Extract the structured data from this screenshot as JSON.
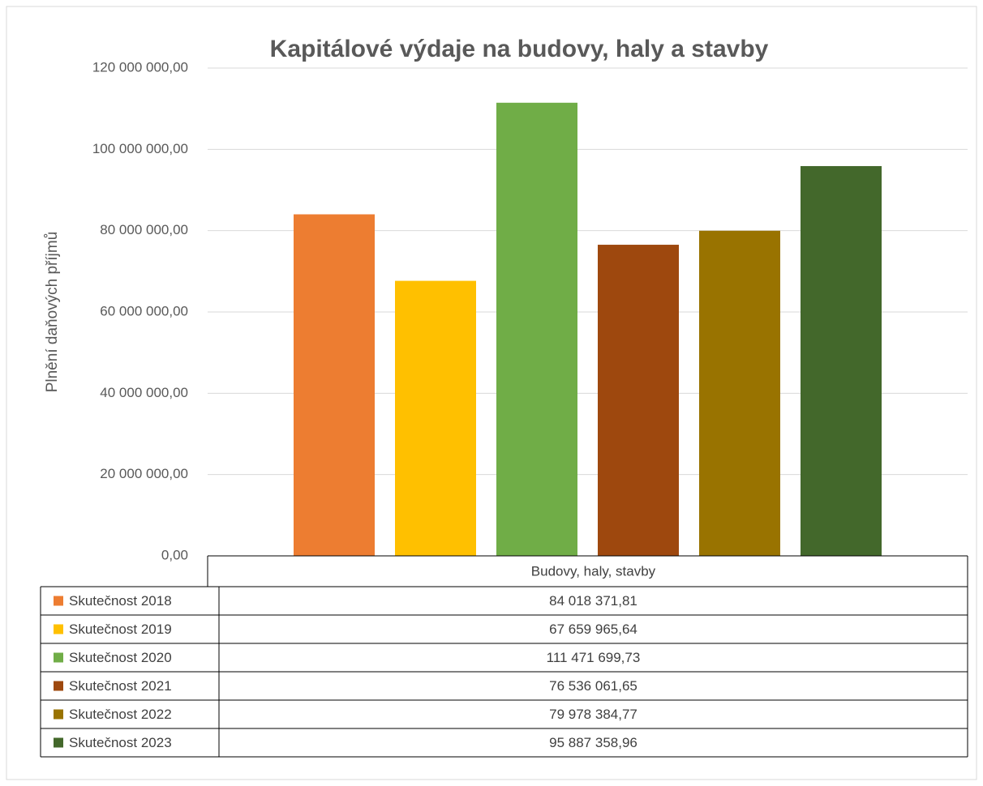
{
  "chart_data": {
    "type": "bar",
    "title": "Kapitálové výdaje  na budovy, haly a stavby",
    "y_label": "Plnění daňových příjmů",
    "categories": [
      "Budovy, haly, stavby"
    ],
    "series": [
      {
        "name": "Skutečnost 2018",
        "color": "#ED7D31",
        "values": [
          84018371.81
        ],
        "value_labels": [
          "84 018 371,81"
        ]
      },
      {
        "name": "Skutečnost 2019",
        "color": "#FFC000",
        "values": [
          67659965.64
        ],
        "value_labels": [
          "67 659 965,64"
        ]
      },
      {
        "name": "Skutečnost 2020",
        "color": "#70AD47",
        "values": [
          111471699.73
        ],
        "value_labels": [
          "111 471 699,73"
        ]
      },
      {
        "name": "Skutečnost 2021",
        "color": "#9E480E",
        "values": [
          76536061.65
        ],
        "value_labels": [
          "76 536 061,65"
        ]
      },
      {
        "name": "Skutečnost 2022",
        "color": "#997300",
        "values": [
          79978384.77
        ],
        "value_labels": [
          "79 978 384,77"
        ]
      },
      {
        "name": "Skutečnost 2023",
        "color": "#43682B",
        "values": [
          95887358.96
        ],
        "value_labels": [
          "95 887 358,96"
        ]
      }
    ],
    "ylim": [
      0,
      120000000
    ],
    "yticks": [
      {
        "value": 0,
        "label": "0,00"
      },
      {
        "value": 20000000,
        "label": "20 000 000,00"
      },
      {
        "value": 40000000,
        "label": "40 000 000,00"
      },
      {
        "value": 60000000,
        "label": "60 000 000,00"
      },
      {
        "value": 80000000,
        "label": "80 000 000,00"
      },
      {
        "value": 100000000,
        "label": "100 000 000,00"
      },
      {
        "value": 120000000,
        "label": "120 000 000,00"
      }
    ],
    "grid": true
  }
}
